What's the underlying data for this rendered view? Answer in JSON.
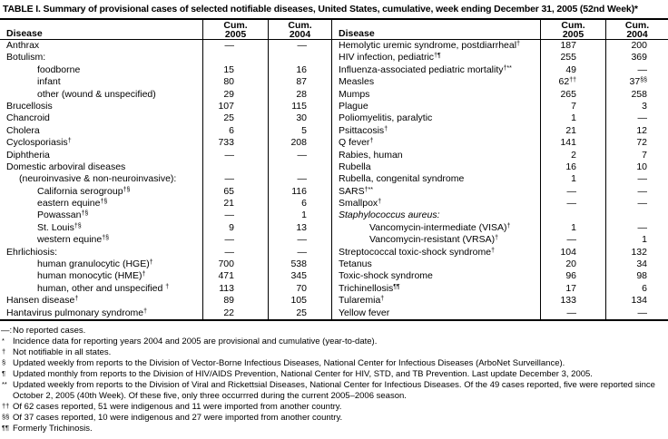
{
  "title": "TABLE I. Summary of provisional cases of selected notifiable diseases, United States, cumulative, week ending December 31, 2005 (52nd Week)*",
  "table": {
    "header": {
      "disease": "Disease",
      "cum": "Cum.",
      "y2005": "2005",
      "y2004": "2004"
    },
    "rows": [
      {
        "left": {
          "label": "Anthrax",
          "indent": 0,
          "c05": "—",
          "c04": "—"
        },
        "right": {
          "label": "Hemolytic uremic syndrome, postdiarrheal",
          "sup": "†",
          "indent": 0,
          "c05": "187",
          "c04": "200"
        }
      },
      {
        "left": {
          "label": "Botulism:",
          "indent": 0,
          "c05": "",
          "c04": ""
        },
        "right": {
          "label": "HIV infection, pediatric",
          "sup": "†¶",
          "indent": 0,
          "c05": "255",
          "c04": "369"
        }
      },
      {
        "left": {
          "label": "foodborne",
          "indent": 2,
          "c05": "15",
          "c04": "16"
        },
        "right": {
          "label": "Influenza-associated pediatric mortality",
          "sup": "†**",
          "indent": 0,
          "c05": "49",
          "c04": "—"
        }
      },
      {
        "left": {
          "label": "infant",
          "indent": 2,
          "c05": "80",
          "c04": "87"
        },
        "right": {
          "label": "Measles",
          "indent": 0,
          "c05": "62",
          "c05sup": "††",
          "c04": "37",
          "c04sup": "§§"
        }
      },
      {
        "left": {
          "label": "other (wound & unspecified)",
          "indent": 2,
          "c05": "29",
          "c04": "28"
        },
        "right": {
          "label": "Mumps",
          "indent": 0,
          "c05": "265",
          "c04": "258"
        }
      },
      {
        "left": {
          "label": "Brucellosis",
          "indent": 0,
          "c05": "107",
          "c04": "115"
        },
        "right": {
          "label": "Plague",
          "indent": 0,
          "c05": "7",
          "c04": "3"
        }
      },
      {
        "left": {
          "label": "Chancroid",
          "indent": 0,
          "c05": "25",
          "c04": "30"
        },
        "right": {
          "label": "Poliomyelitis, paralytic",
          "indent": 0,
          "c05": "1",
          "c04": "—"
        }
      },
      {
        "left": {
          "label": "Cholera",
          "indent": 0,
          "c05": "6",
          "c04": "5"
        },
        "right": {
          "label": "Psittacosis",
          "sup": "†",
          "indent": 0,
          "c05": "21",
          "c04": "12"
        }
      },
      {
        "left": {
          "label": "Cyclosporiasis",
          "sup": "†",
          "indent": 0,
          "c05": "733",
          "c04": "208"
        },
        "right": {
          "label": "Q fever",
          "sup": "†",
          "indent": 0,
          "c05": "141",
          "c04": "72"
        }
      },
      {
        "left": {
          "label": "Diphtheria",
          "indent": 0,
          "c05": "—",
          "c04": "—"
        },
        "right": {
          "label": "Rabies, human",
          "indent": 0,
          "c05": "2",
          "c04": "7"
        }
      },
      {
        "left": {
          "label": "Domestic arboviral diseases",
          "indent": 0,
          "c05": "",
          "c04": ""
        },
        "right": {
          "label": "Rubella",
          "indent": 0,
          "c05": "16",
          "c04": "10"
        }
      },
      {
        "left": {
          "label": "(neuroinvasive & non-neuroinvasive):",
          "indent": 1,
          "c05": "—",
          "c04": "—"
        },
        "right": {
          "label": "Rubella, congenital syndrome",
          "indent": 0,
          "c05": "1",
          "c04": "—"
        }
      },
      {
        "left": {
          "label": "California serogroup",
          "sup": "†§",
          "indent": 2,
          "c05": "65",
          "c04": "116"
        },
        "right": {
          "label": "SARS",
          "sup": "†**",
          "indent": 0,
          "c05": "—",
          "c04": "—"
        }
      },
      {
        "left": {
          "label": "eastern equine",
          "sup": "†§",
          "indent": 2,
          "c05": "21",
          "c04": "6"
        },
        "right": {
          "label": "Smallpox",
          "sup": "†",
          "indent": 0,
          "c05": "—",
          "c04": "—"
        }
      },
      {
        "left": {
          "label": "Powassan",
          "sup": "†§",
          "indent": 2,
          "c05": "—",
          "c04": "1"
        },
        "right": {
          "label": "Staphylococcus aureus:",
          "italic": true,
          "indent": 0,
          "c05": "",
          "c04": ""
        }
      },
      {
        "left": {
          "label": "St. Louis",
          "sup": "†§",
          "indent": 2,
          "c05": "9",
          "c04": "13"
        },
        "right": {
          "label": "Vancomycin-intermediate (VISA)",
          "sup": "†",
          "indent": 2,
          "c05": "1",
          "c04": "—"
        }
      },
      {
        "left": {
          "label": "western equine",
          "sup": "†§",
          "indent": 2,
          "c05": "—",
          "c04": "—"
        },
        "right": {
          "label": "Vancomycin-resistant (VRSA)",
          "sup": "†",
          "indent": 2,
          "c05": "—",
          "c04": "1"
        }
      },
      {
        "left": {
          "label": "Ehrlichiosis:",
          "indent": 0,
          "c05": "—",
          "c04": "—"
        },
        "right": {
          "label": "Streptococcal toxic-shock syndrome",
          "sup": "†",
          "indent": 0,
          "c05": "104",
          "c04": "132"
        }
      },
      {
        "left": {
          "label": "human granulocytic (HGE)",
          "sup": "†",
          "indent": 2,
          "c05": "700",
          "c04": "538"
        },
        "right": {
          "label": "Tetanus",
          "indent": 0,
          "c05": "20",
          "c04": "34"
        }
      },
      {
        "left": {
          "label": "human monocytic (HME)",
          "sup": "†",
          "indent": 2,
          "c05": "471",
          "c04": "345"
        },
        "right": {
          "label": "Toxic-shock syndrome",
          "indent": 0,
          "c05": "96",
          "c04": "98"
        }
      },
      {
        "left": {
          "label": "human, other and unspecified ",
          "sup": "†",
          "indent": 2,
          "c05": "113",
          "c04": "70"
        },
        "right": {
          "label": "Trichinellosis",
          "sup": "¶¶",
          "indent": 0,
          "c05": "17",
          "c04": "6"
        }
      },
      {
        "left": {
          "label": "Hansen disease",
          "sup": "†",
          "indent": 0,
          "c05": "89",
          "c04": "105"
        },
        "right": {
          "label": "Tularemia",
          "sup": "†",
          "indent": 0,
          "c05": "133",
          "c04": "134"
        }
      },
      {
        "left": {
          "label": "Hantavirus pulmonary syndrome",
          "sup": "†",
          "indent": 0,
          "c05": "22",
          "c04": "25"
        },
        "right": {
          "label": "Yellow fever",
          "indent": 0,
          "c05": "—",
          "c04": "—"
        }
      }
    ]
  },
  "footnotes": [
    {
      "marker": "—:",
      "sup": false,
      "text": "No reported cases."
    },
    {
      "marker": "*",
      "sup": true,
      "text": "Incidence data for reporting years 2004 and 2005 are provisional and cumulative (year-to-date)."
    },
    {
      "marker": "†",
      "sup": true,
      "text": "Not notifiable in all states."
    },
    {
      "marker": "§",
      "sup": true,
      "text": "Updated weekly from reports to the Division of Vector-Borne Infectious Diseases, National Center for Infectious Diseases (ArboNet Surveillance)."
    },
    {
      "marker": "¶",
      "sup": true,
      "text": "Updated monthly from reports to the Division of HIV/AIDS Prevention, National Center for HIV, STD, and TB Prevention. Last update December 3, 2005."
    },
    {
      "marker": "**",
      "sup": true,
      "text": "Updated weekly from reports to the Division of Viral and Rickettsial Diseases, National Center for Infectious Diseases. Of the 49 cases reported, five were reported since October 2, 2005 (40th Week). Of these five, only three occurrred during the current 2005–2006 season."
    },
    {
      "marker": "††",
      "sup": true,
      "text": "Of 62 cases reported, 51 were indigenous and 11 were imported from another country."
    },
    {
      "marker": "§§",
      "sup": true,
      "text": "Of 37 cases reported, 10 were indigenous and 27 were imported from another country."
    },
    {
      "marker": "¶¶",
      "sup": true,
      "text": "Formerly Trichinosis."
    }
  ]
}
